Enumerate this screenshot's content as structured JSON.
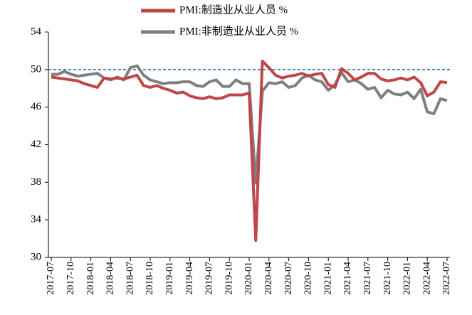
{
  "chart_data": {
    "type": "line",
    "categories": [
      "2017-07",
      null,
      null,
      "2017-10",
      null,
      null,
      "2018-01",
      null,
      null,
      "2018-04",
      null,
      null,
      "2018-07",
      null,
      null,
      "2018-10",
      null,
      null,
      "2019-01",
      null,
      null,
      "2019-04",
      null,
      null,
      "2019-07",
      null,
      null,
      "2019-10",
      null,
      null,
      "2020-01",
      null,
      null,
      "2020-04",
      null,
      null,
      "2020-07",
      null,
      null,
      "2020-10",
      null,
      null,
      "2021-01",
      null,
      null,
      "2021-04",
      null,
      null,
      "2021-07",
      null,
      null,
      "2021-10",
      null,
      null,
      "2022-01",
      null,
      null,
      "2022-04",
      null,
      null,
      "2022-07"
    ],
    "series": [
      {
        "name": "PMI:制造业从业人员 %",
        "color": "#c0464a",
        "values": [
          49.2,
          49.1,
          49.0,
          48.9,
          48.8,
          48.5,
          48.3,
          48.1,
          49.1,
          49.0,
          49.1,
          49.0,
          49.2,
          49.4,
          48.3,
          48.1,
          48.3,
          48.0,
          47.8,
          47.5,
          47.6,
          47.2,
          47.0,
          46.9,
          47.1,
          46.9,
          47.0,
          47.3,
          47.3,
          47.3,
          47.5,
          31.8,
          50.9,
          50.2,
          49.4,
          49.1,
          49.3,
          49.4,
          49.6,
          49.3,
          49.5,
          49.6,
          48.4,
          48.1,
          50.1,
          49.6,
          48.9,
          49.2,
          49.6,
          49.6,
          49.0,
          48.8,
          48.9,
          49.1,
          48.9,
          49.2,
          48.6,
          47.2,
          47.6,
          48.7,
          48.6
        ]
      },
      {
        "name": "PMI:非制造业从业人员 %",
        "color": "#7f7f7f",
        "values": [
          49.5,
          49.5,
          49.8,
          49.5,
          49.3,
          49.4,
          49.5,
          49.6,
          49.1,
          48.9,
          49.2,
          48.9,
          50.2,
          50.4,
          49.4,
          48.9,
          48.7,
          48.5,
          48.6,
          48.6,
          48.7,
          48.7,
          48.3,
          48.2,
          48.7,
          48.9,
          48.2,
          48.2,
          48.9,
          48.5,
          48.5,
          37.9,
          47.7,
          48.6,
          48.5,
          48.7,
          48.1,
          48.3,
          49.1,
          49.4,
          48.9,
          48.7,
          47.8,
          48.4,
          49.7,
          48.7,
          48.9,
          48.5,
          47.9,
          48.1,
          47.0,
          47.8,
          47.4,
          47.3,
          47.6,
          46.9,
          47.9,
          45.5,
          45.3,
          46.9,
          46.7
        ]
      }
    ],
    "ylim": [
      30,
      54
    ],
    "yticks": [
      30,
      34,
      38,
      42,
      46,
      50,
      54
    ],
    "reference_line": {
      "value": 50,
      "color": "#1f6fc0"
    }
  }
}
